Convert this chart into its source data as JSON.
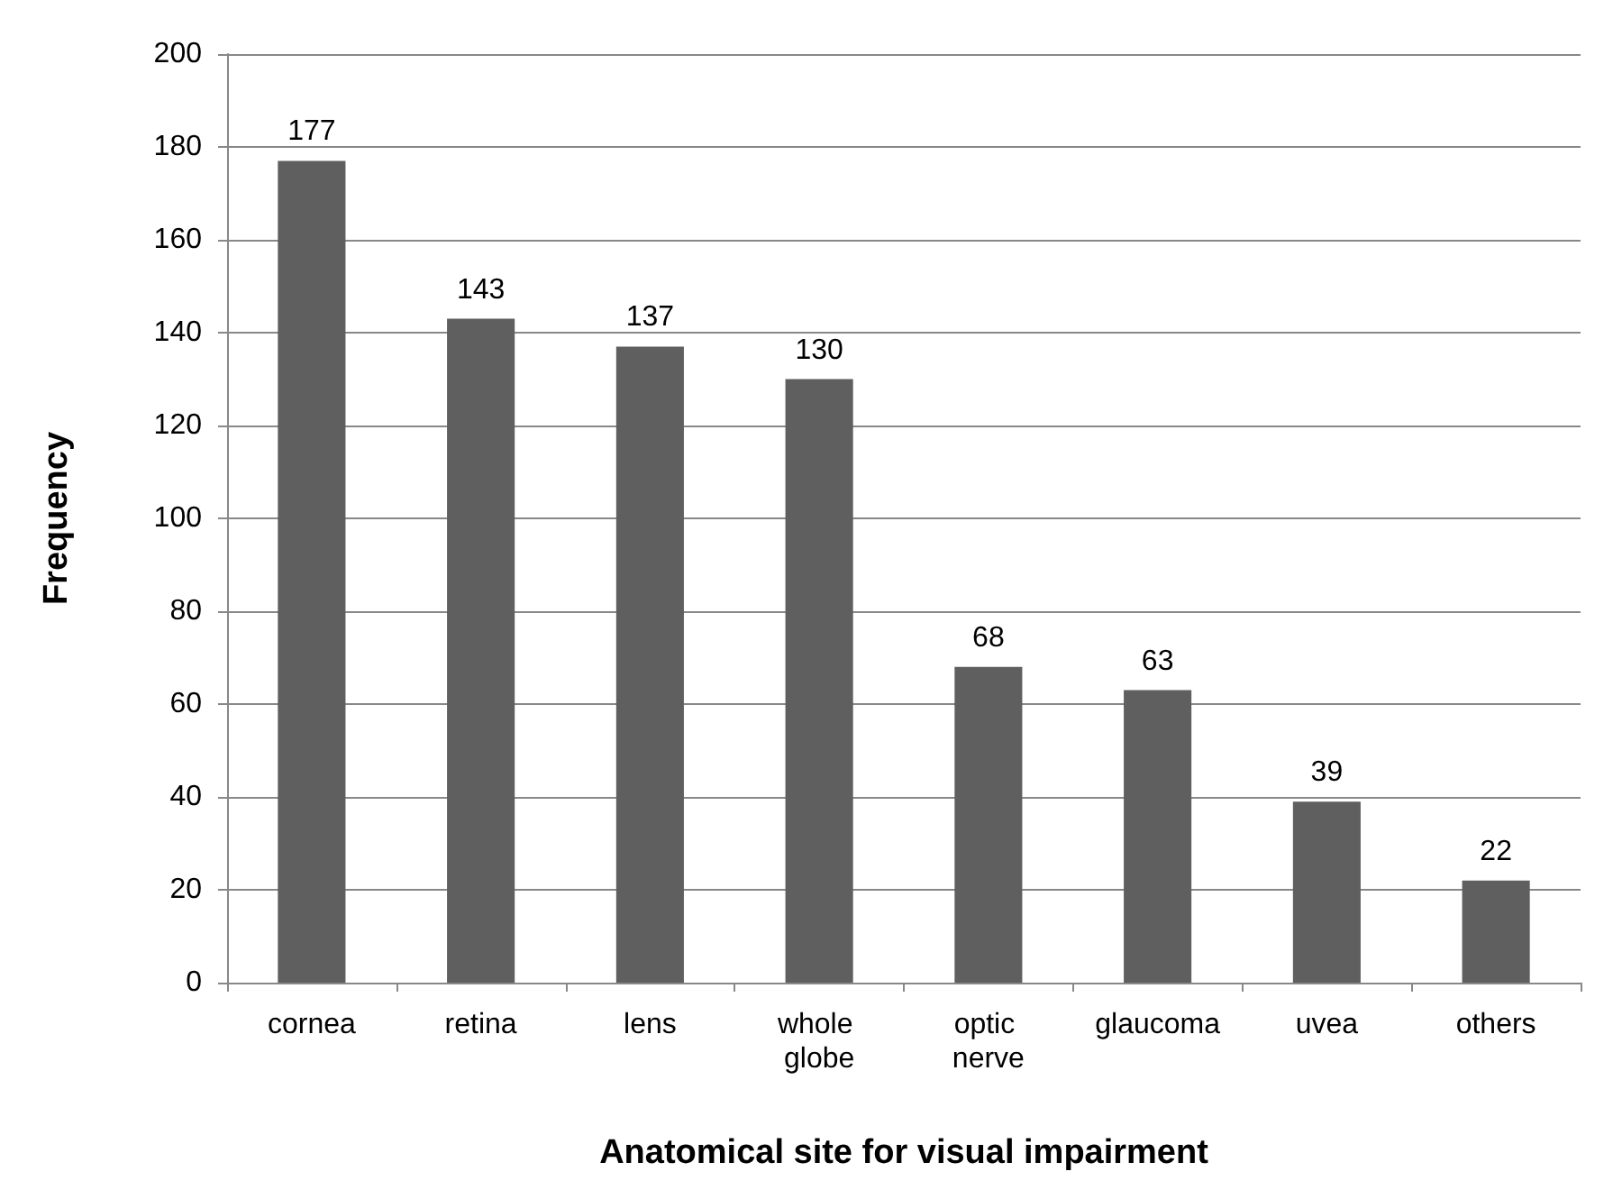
{
  "chart_data": {
    "type": "bar",
    "xlabel": "Anatomical site for visual impairment",
    "ylabel": "Frequency",
    "categories": [
      "cornea",
      "retina",
      "lens",
      "whole globe",
      "optic nerve",
      "glaucoma",
      "uvea",
      "others"
    ],
    "values": [
      177,
      143,
      137,
      130,
      68,
      63,
      39,
      22
    ],
    "color": "#5f5f5f",
    "ylim": [
      0,
      200
    ],
    "yticks": [
      0,
      20,
      40,
      60,
      80,
      100,
      120,
      140,
      160,
      180,
      200
    ],
    "grid": "y",
    "data_labels": true
  }
}
